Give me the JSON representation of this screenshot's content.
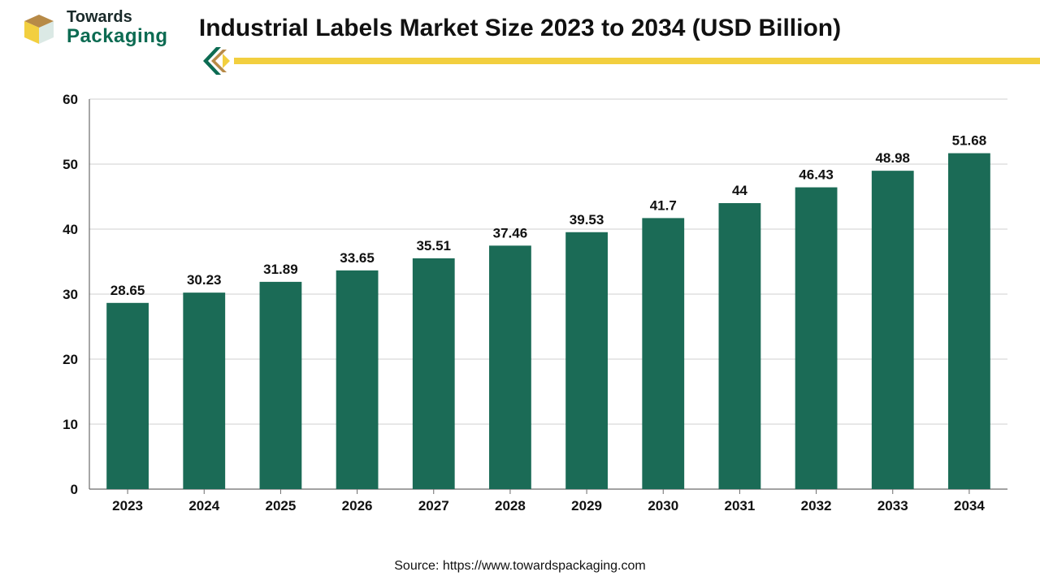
{
  "logo": {
    "line1": "Towards",
    "line2": "Packaging",
    "line1_color": "#1a2a2a",
    "line2_color": "#0c6b52",
    "mark_yellow": "#f2cf3f",
    "mark_brown": "#b78a47"
  },
  "title": "Industrial Labels Market Size 2023 to 2034 (USD Billion)",
  "divider": {
    "line_color": "#f2cf3f",
    "chevron_green": "#0c6b52",
    "chevron_brown": "#b78a47",
    "chevron_yellow": "#f2cf3f"
  },
  "chart": {
    "type": "bar",
    "categories": [
      "2023",
      "2024",
      "2025",
      "2026",
      "2027",
      "2028",
      "2029",
      "2030",
      "2031",
      "2032",
      "2033",
      "2034"
    ],
    "values": [
      28.65,
      30.23,
      31.89,
      33.65,
      35.51,
      37.46,
      39.53,
      41.7,
      44,
      46.43,
      48.98,
      51.68
    ],
    "value_labels": [
      "28.65",
      "30.23",
      "31.89",
      "33.65",
      "35.51",
      "37.46",
      "39.53",
      "41.7",
      "44",
      "46.43",
      "48.98",
      "51.68"
    ],
    "bar_color": "#1b6b56",
    "ylim": [
      0,
      60
    ],
    "ytick_step": 10,
    "yticks": [
      0,
      10,
      20,
      30,
      40,
      50,
      60
    ],
    "bar_width_ratio": 0.55,
    "background_color": "#ffffff",
    "grid_color": "#cfcfcf",
    "axis_color": "#6b6b6b",
    "label_fontsize": 17,
    "label_fontweight": 700,
    "value_label_color": "#111111"
  },
  "source": "Source: https://www.towardspackaging.com"
}
